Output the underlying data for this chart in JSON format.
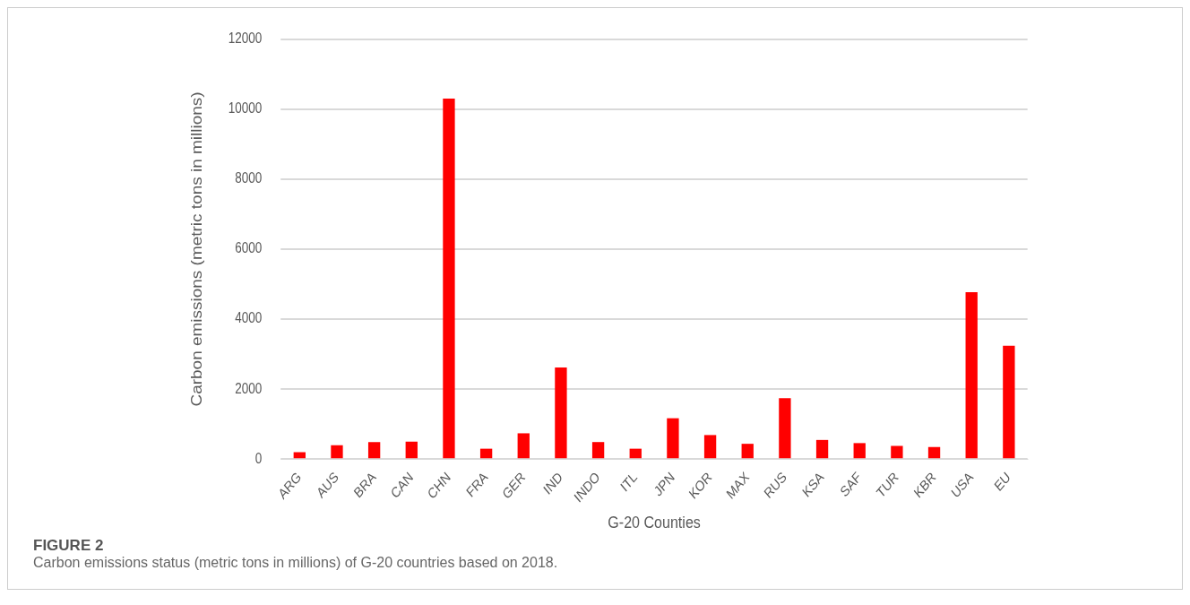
{
  "chart_data": {
    "type": "bar",
    "xlabel": "G-20 Counties",
    "ylabel": "Carbon emissions (metric tons in millions)",
    "categories": [
      "ARG",
      "AUS",
      "BRA",
      "CAN",
      "CHN",
      "FRA",
      "GER",
      "IND",
      "INDO",
      "ITL",
      "JPN",
      "KOR",
      "MAX",
      "RUS",
      "KSA",
      "SAF",
      "TUR",
      "KBR",
      "USA",
      "EU"
    ],
    "values": [
      200,
      400,
      490,
      500,
      10300,
      300,
      740,
      2620,
      490,
      300,
      1170,
      690,
      440,
      1740,
      550,
      460,
      380,
      350,
      4770,
      3240
    ],
    "color": "#ff0000",
    "ylim": [
      0,
      12000
    ],
    "yticks": [
      0,
      2000,
      4000,
      6000,
      8000,
      10000,
      12000
    ],
    "grid": "y",
    "annotations": [
      "FIGURE 2",
      "Carbon emissions status (metric tons in millions) of G-20 countries based on 2018."
    ]
  }
}
